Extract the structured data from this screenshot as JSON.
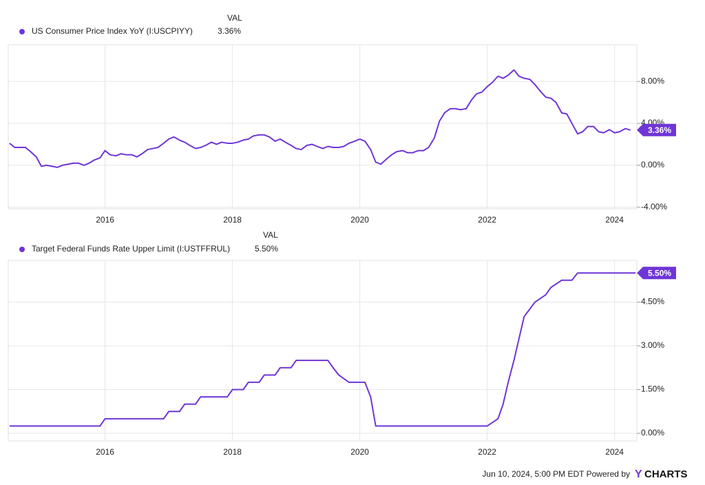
{
  "chart_data": [
    {
      "type": "line",
      "legend_header": "VAL",
      "last_label": "3.36%",
      "grid": true,
      "series": [
        {
          "name": "US Consumer Price Index YoY (I:USCPIYY)",
          "color": "#6f35d6",
          "values": [
            2.1,
            1.7,
            1.7,
            1.7,
            1.3,
            0.8,
            -0.1,
            0.0,
            -0.1,
            -0.2,
            0.0,
            0.1,
            0.2,
            0.2,
            0.0,
            0.2,
            0.5,
            0.7,
            1.4,
            1.0,
            0.9,
            1.1,
            1.0,
            1.0,
            0.8,
            1.1,
            1.5,
            1.6,
            1.7,
            2.1,
            2.5,
            2.7,
            2.4,
            2.2,
            1.9,
            1.6,
            1.7,
            1.9,
            2.2,
            2.0,
            2.2,
            2.1,
            2.1,
            2.2,
            2.4,
            2.5,
            2.8,
            2.9,
            2.9,
            2.7,
            2.3,
            2.5,
            2.2,
            1.9,
            1.6,
            1.5,
            1.9,
            2.0,
            1.8,
            1.6,
            1.8,
            1.7,
            1.7,
            1.8,
            2.1,
            2.3,
            2.5,
            2.3,
            1.5,
            0.3,
            0.1,
            0.6,
            1.0,
            1.3,
            1.4,
            1.2,
            1.2,
            1.4,
            1.4,
            1.7,
            2.6,
            4.2,
            5.0,
            5.4,
            5.4,
            5.3,
            5.4,
            6.2,
            6.8,
            7.0,
            7.5,
            7.9,
            8.5,
            8.3,
            8.6,
            9.1,
            8.5,
            8.3,
            8.2,
            7.7,
            7.1,
            6.5,
            6.4,
            6.0,
            5.0,
            4.9,
            4.0,
            3.0,
            3.2,
            3.7,
            3.7,
            3.2,
            3.1,
            3.4,
            3.1,
            3.2,
            3.5,
            3.36
          ]
        }
      ],
      "x": [
        2014.5,
        2014.58,
        2014.67,
        2014.75,
        2014.83,
        2014.92,
        2015.0,
        2015.08,
        2015.17,
        2015.25,
        2015.33,
        2015.42,
        2015.5,
        2015.58,
        2015.67,
        2015.75,
        2015.83,
        2015.92,
        2016.0,
        2016.08,
        2016.17,
        2016.25,
        2016.33,
        2016.42,
        2016.5,
        2016.58,
        2016.67,
        2016.75,
        2016.83,
        2016.92,
        2017.0,
        2017.08,
        2017.17,
        2017.25,
        2017.33,
        2017.42,
        2017.5,
        2017.58,
        2017.67,
        2017.75,
        2017.83,
        2017.92,
        2018.0,
        2018.08,
        2018.17,
        2018.25,
        2018.33,
        2018.42,
        2018.5,
        2018.58,
        2018.67,
        2018.75,
        2018.83,
        2018.92,
        2019.0,
        2019.08,
        2019.17,
        2019.25,
        2019.33,
        2019.42,
        2019.5,
        2019.58,
        2019.67,
        2019.75,
        2019.83,
        2019.92,
        2020.0,
        2020.08,
        2020.17,
        2020.25,
        2020.33,
        2020.42,
        2020.5,
        2020.58,
        2020.67,
        2020.75,
        2020.83,
        2020.92,
        2021.0,
        2021.08,
        2021.17,
        2021.25,
        2021.33,
        2021.42,
        2021.5,
        2021.58,
        2021.67,
        2021.75,
        2021.83,
        2021.92,
        2022.0,
        2022.08,
        2022.17,
        2022.25,
        2022.33,
        2022.42,
        2022.5,
        2022.58,
        2022.67,
        2022.75,
        2022.83,
        2022.92,
        2023.0,
        2023.08,
        2023.17,
        2023.25,
        2023.33,
        2023.42,
        2023.5,
        2023.58,
        2023.67,
        2023.75,
        2023.83,
        2023.92,
        2024.0,
        2024.08,
        2024.17,
        2024.25
      ],
      "xlim": [
        2014.48,
        2024.35
      ],
      "xticks": [
        2016,
        2018,
        2020,
        2022,
        2024
      ],
      "ylim": [
        -4.15,
        11.5
      ],
      "yticks": [
        {
          "value": -4,
          "label": "-4.00%"
        },
        {
          "value": 0,
          "label": "0.00%"
        },
        {
          "value": 4,
          "label": "4.00%"
        },
        {
          "value": 8,
          "label": "8.00%"
        }
      ]
    },
    {
      "type": "line",
      "legend_header": "VAL",
      "last_label": "5.50%",
      "grid": true,
      "series": [
        {
          "name": "Target Federal Funds Rate Upper Limit (I:USTFFRUL)",
          "color": "#6f35d6",
          "values": [
            0.25,
            0.25,
            0.5,
            0.5,
            0.75,
            0.75,
            1.0,
            1.0,
            1.25,
            1.25,
            1.5,
            1.5,
            1.75,
            1.75,
            2.0,
            2.0,
            2.25,
            2.25,
            2.5,
            2.5,
            2.25,
            2.0,
            1.75,
            1.75,
            1.25,
            0.25,
            0.25,
            0.5,
            1.0,
            1.75,
            2.5,
            3.25,
            4.0,
            4.5,
            4.75,
            5.0,
            5.25,
            5.25,
            5.5,
            5.5
          ]
        }
      ],
      "x": [
        2014.5,
        2015.92,
        2016.0,
        2016.92,
        2017.0,
        2017.17,
        2017.25,
        2017.42,
        2017.5,
        2017.92,
        2018.0,
        2018.17,
        2018.25,
        2018.42,
        2018.5,
        2018.67,
        2018.75,
        2018.92,
        2019.0,
        2019.5,
        2019.58,
        2019.67,
        2019.83,
        2020.08,
        2020.17,
        2020.25,
        2022.0,
        2022.17,
        2022.25,
        2022.33,
        2022.42,
        2022.5,
        2022.58,
        2022.75,
        2022.92,
        2023.0,
        2023.17,
        2023.33,
        2023.42,
        2024.33
      ],
      "xlim": [
        2014.48,
        2024.35
      ],
      "xticks": [
        2016,
        2018,
        2020,
        2022,
        2024
      ],
      "ylim": [
        -0.26,
        5.93
      ],
      "yticks": [
        {
          "value": 0,
          "label": "0.00%"
        },
        {
          "value": 1.5,
          "label": "1.50%"
        },
        {
          "value": 3,
          "label": "3.00%"
        },
        {
          "value": 4.5,
          "label": "4.50%"
        }
      ]
    }
  ],
  "footer": {
    "text": "Jun 10, 2024, 5:00 PM EDT Powered by",
    "logo_mark": "Y",
    "logo_text": "CHARTS"
  }
}
